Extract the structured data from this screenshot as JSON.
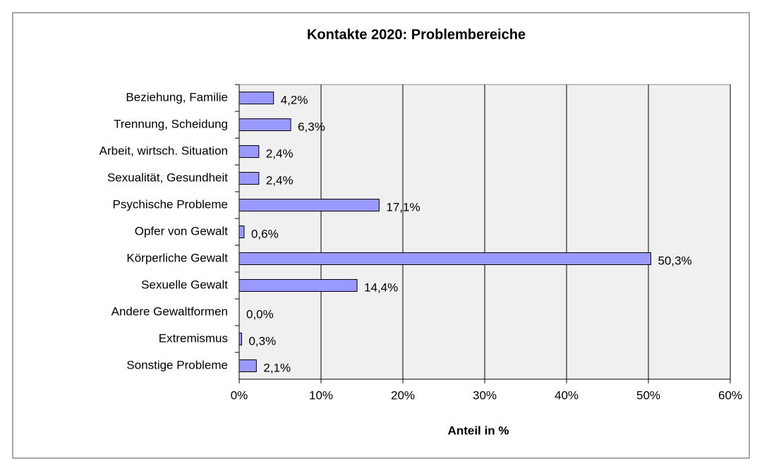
{
  "chart_data": {
    "type": "barh",
    "title": "Kontakte 2020: Problembereiche",
    "x_label": "Anteil in %",
    "categories": [
      "Beziehung, Familie",
      "Trennung, Scheidung",
      "Arbeit, wirtsch. Situation",
      "Sexualität, Gesundheit",
      "Psychische Probleme",
      "Opfer von Gewalt",
      "Körperliche Gewalt",
      "Sexuelle Gewalt",
      "Andere Gewaltformen",
      "Extremismus",
      "Sonstige Probleme"
    ],
    "values": [
      4.2,
      6.3,
      2.4,
      2.4,
      17.1,
      0.6,
      50.3,
      14.4,
      0.0,
      0.3,
      2.1
    ],
    "value_labels": [
      "4,2%",
      "6,3%",
      "2,4%",
      "2,4%",
      "17,1%",
      "0,6%",
      "50,3%",
      "14,4%",
      "0,0%",
      "0,3%",
      "2,1%"
    ],
    "color": "#9999ff",
    "xlim": [
      0,
      60
    ],
    "xticks": [
      {
        "value": 0,
        "label": "0%"
      },
      {
        "value": 10,
        "label": "10%"
      },
      {
        "value": 20,
        "label": "20%"
      },
      {
        "value": 30,
        "label": "30%"
      },
      {
        "value": 40,
        "label": "40%"
      },
      {
        "value": 50,
        "label": "50%"
      },
      {
        "value": 60,
        "label": "60%"
      }
    ],
    "grid": true
  }
}
